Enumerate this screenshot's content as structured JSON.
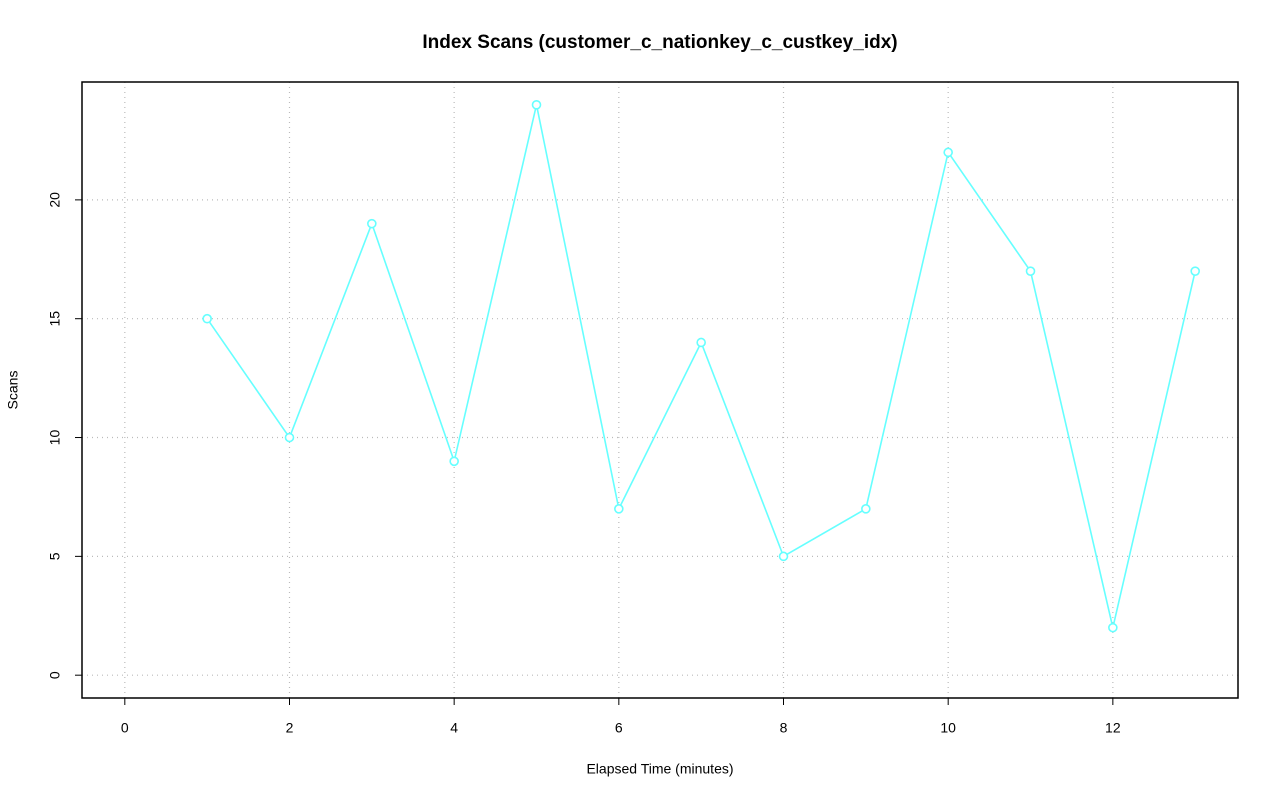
{
  "chart_data": {
    "type": "line",
    "title": "Index Scans (customer_c_nationkey_c_custkey_idx)",
    "x_label": "Elapsed Time (minutes)",
    "y_label": "Scans",
    "x": [
      1,
      2,
      3,
      4,
      5,
      6,
      7,
      8,
      9,
      10,
      11,
      12,
      13
    ],
    "series": [
      {
        "color": "#66ffff",
        "values": [
          15,
          10,
          19,
          9,
          24,
          7,
          14,
          5,
          7,
          22,
          17,
          2,
          17
        ]
      }
    ],
    "xlim": [
      -0.52,
      13.52
    ],
    "xticks": [
      0,
      2,
      4,
      6,
      8,
      10,
      12
    ],
    "ylim": [
      -0.96,
      24.96
    ],
    "yticks": [
      0,
      5,
      10,
      15,
      20
    ],
    "grid": true
  }
}
